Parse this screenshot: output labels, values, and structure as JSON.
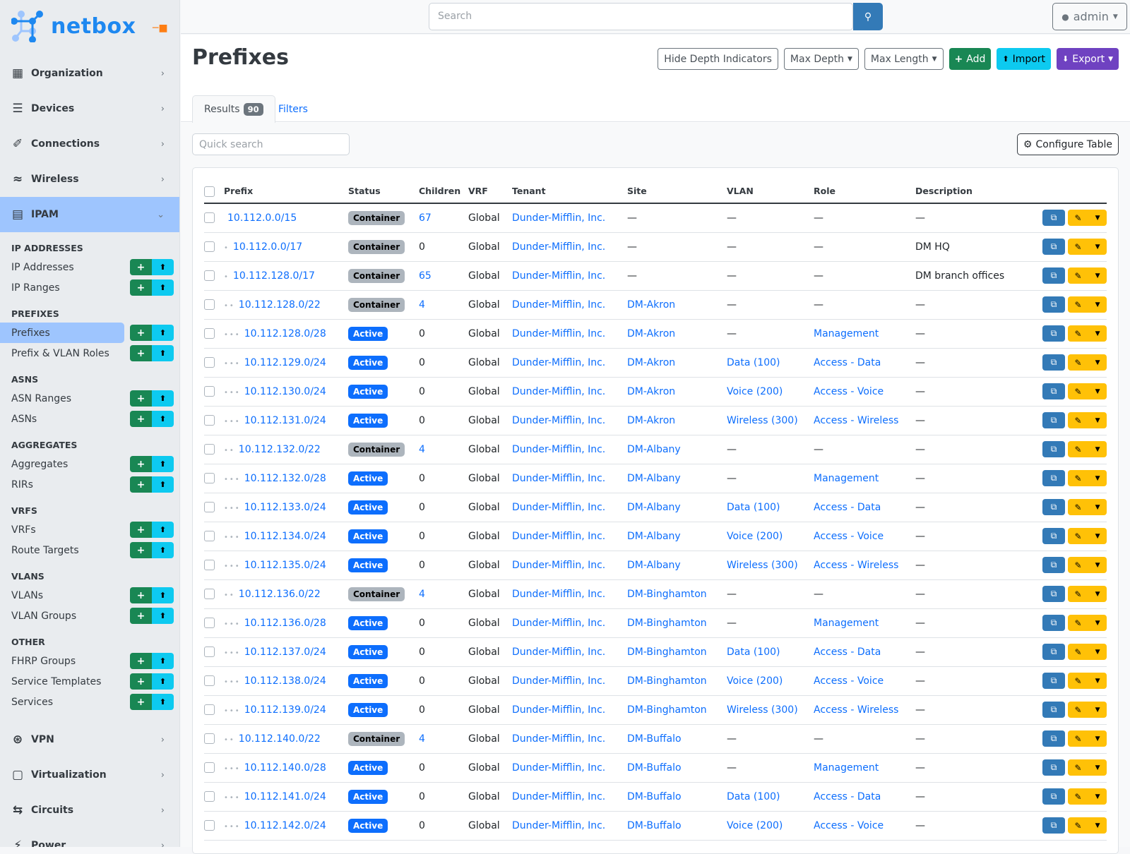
{
  "brand": {
    "name": "netbox",
    "accent": "#1e88f0"
  },
  "sidebar": {
    "top_items": [
      {
        "label": "Organization",
        "icon": "building-icon"
      },
      {
        "label": "Devices",
        "icon": "server-icon"
      },
      {
        "label": "Connections",
        "icon": "plug-icon"
      },
      {
        "label": "Wireless",
        "icon": "wifi-icon"
      }
    ],
    "active_section": {
      "label": "IPAM",
      "icon": "ipam-icon"
    },
    "groups": [
      {
        "heading": "IP ADDRESSES",
        "items": [
          {
            "label": "IP Addresses"
          },
          {
            "label": "IP Ranges"
          }
        ]
      },
      {
        "heading": "PREFIXES",
        "items": [
          {
            "label": "Prefixes",
            "active": true
          },
          {
            "label": "Prefix & VLAN Roles"
          }
        ]
      },
      {
        "heading": "ASNS",
        "items": [
          {
            "label": "ASN Ranges"
          },
          {
            "label": "ASNs"
          }
        ]
      },
      {
        "heading": "AGGREGATES",
        "items": [
          {
            "label": "Aggregates"
          },
          {
            "label": "RIRs"
          }
        ]
      },
      {
        "heading": "VRFS",
        "items": [
          {
            "label": "VRFs"
          },
          {
            "label": "Route Targets"
          }
        ]
      },
      {
        "heading": "VLANS",
        "items": [
          {
            "label": "VLANs"
          },
          {
            "label": "VLAN Groups"
          }
        ]
      },
      {
        "heading": "OTHER",
        "items": [
          {
            "label": "FHRP Groups"
          },
          {
            "label": "Service Templates"
          },
          {
            "label": "Services"
          }
        ]
      }
    ],
    "bottom_items": [
      {
        "label": "VPN",
        "icon": "vpn-icon"
      },
      {
        "label": "Virtualization",
        "icon": "monitor-icon"
      },
      {
        "label": "Circuits",
        "icon": "circuits-icon"
      },
      {
        "label": "Power",
        "icon": "bolt-icon"
      }
    ]
  },
  "topbar": {
    "search_placeholder": "Search",
    "user": "admin"
  },
  "page": {
    "title": "Prefixes",
    "buttons": {
      "hide_depth": "Hide Depth Indicators",
      "max_depth": "Max Depth",
      "max_length": "Max Length",
      "add": "Add",
      "import": "Import",
      "export": "Export"
    },
    "tabs": {
      "results": "Results",
      "results_count": "90",
      "filters": "Filters"
    },
    "quick_search_placeholder": "Quick search",
    "configure_table": "Configure Table"
  },
  "table": {
    "columns": [
      "Prefix",
      "Status",
      "Children",
      "VRF",
      "Tenant",
      "Site",
      "VLAN",
      "Role",
      "Description"
    ],
    "rows": [
      {
        "prefix": "10.112.0.0/15",
        "depth": 0,
        "status": "Container",
        "children": "67",
        "vrf": "Global",
        "tenant": "Dunder-Mifflin, Inc.",
        "site": "—",
        "vlan": "—",
        "role": "—",
        "description": "—"
      },
      {
        "prefix": "10.112.0.0/17",
        "depth": 1,
        "status": "Container",
        "children": "0",
        "vrf": "Global",
        "tenant": "Dunder-Mifflin, Inc.",
        "site": "—",
        "vlan": "—",
        "role": "—",
        "description": "DM HQ"
      },
      {
        "prefix": "10.112.128.0/17",
        "depth": 1,
        "status": "Container",
        "children": "65",
        "vrf": "Global",
        "tenant": "Dunder-Mifflin, Inc.",
        "site": "—",
        "vlan": "—",
        "role": "—",
        "description": "DM branch offices"
      },
      {
        "prefix": "10.112.128.0/22",
        "depth": 2,
        "status": "Container",
        "children": "4",
        "vrf": "Global",
        "tenant": "Dunder-Mifflin, Inc.",
        "site": "DM-Akron",
        "vlan": "—",
        "role": "—",
        "description": "—"
      },
      {
        "prefix": "10.112.128.0/28",
        "depth": 3,
        "status": "Active",
        "children": "0",
        "vrf": "Global",
        "tenant": "Dunder-Mifflin, Inc.",
        "site": "DM-Akron",
        "vlan": "—",
        "role": "Management",
        "description": "—"
      },
      {
        "prefix": "10.112.129.0/24",
        "depth": 3,
        "status": "Active",
        "children": "0",
        "vrf": "Global",
        "tenant": "Dunder-Mifflin, Inc.",
        "site": "DM-Akron",
        "vlan": "Data (100)",
        "role": "Access - Data",
        "description": "—"
      },
      {
        "prefix": "10.112.130.0/24",
        "depth": 3,
        "status": "Active",
        "children": "0",
        "vrf": "Global",
        "tenant": "Dunder-Mifflin, Inc.",
        "site": "DM-Akron",
        "vlan": "Voice (200)",
        "role": "Access - Voice",
        "description": "—"
      },
      {
        "prefix": "10.112.131.0/24",
        "depth": 3,
        "status": "Active",
        "children": "0",
        "vrf": "Global",
        "tenant": "Dunder-Mifflin, Inc.",
        "site": "DM-Akron",
        "vlan": "Wireless (300)",
        "role": "Access - Wireless",
        "description": "—"
      },
      {
        "prefix": "10.112.132.0/22",
        "depth": 2,
        "status": "Container",
        "children": "4",
        "vrf": "Global",
        "tenant": "Dunder-Mifflin, Inc.",
        "site": "DM-Albany",
        "vlan": "—",
        "role": "—",
        "description": "—"
      },
      {
        "prefix": "10.112.132.0/28",
        "depth": 3,
        "status": "Active",
        "children": "0",
        "vrf": "Global",
        "tenant": "Dunder-Mifflin, Inc.",
        "site": "DM-Albany",
        "vlan": "—",
        "role": "Management",
        "description": "—"
      },
      {
        "prefix": "10.112.133.0/24",
        "depth": 3,
        "status": "Active",
        "children": "0",
        "vrf": "Global",
        "tenant": "Dunder-Mifflin, Inc.",
        "site": "DM-Albany",
        "vlan": "Data (100)",
        "role": "Access - Data",
        "description": "—"
      },
      {
        "prefix": "10.112.134.0/24",
        "depth": 3,
        "status": "Active",
        "children": "0",
        "vrf": "Global",
        "tenant": "Dunder-Mifflin, Inc.",
        "site": "DM-Albany",
        "vlan": "Voice (200)",
        "role": "Access - Voice",
        "description": "—"
      },
      {
        "prefix": "10.112.135.0/24",
        "depth": 3,
        "status": "Active",
        "children": "0",
        "vrf": "Global",
        "tenant": "Dunder-Mifflin, Inc.",
        "site": "DM-Albany",
        "vlan": "Wireless (300)",
        "role": "Access - Wireless",
        "description": "—"
      },
      {
        "prefix": "10.112.136.0/22",
        "depth": 2,
        "status": "Container",
        "children": "4",
        "vrf": "Global",
        "tenant": "Dunder-Mifflin, Inc.",
        "site": "DM-Binghamton",
        "vlan": "—",
        "role": "—",
        "description": "—"
      },
      {
        "prefix": "10.112.136.0/28",
        "depth": 3,
        "status": "Active",
        "children": "0",
        "vrf": "Global",
        "tenant": "Dunder-Mifflin, Inc.",
        "site": "DM-Binghamton",
        "vlan": "—",
        "role": "Management",
        "description": "—"
      },
      {
        "prefix": "10.112.137.0/24",
        "depth": 3,
        "status": "Active",
        "children": "0",
        "vrf": "Global",
        "tenant": "Dunder-Mifflin, Inc.",
        "site": "DM-Binghamton",
        "vlan": "Data (100)",
        "role": "Access - Data",
        "description": "—"
      },
      {
        "prefix": "10.112.138.0/24",
        "depth": 3,
        "status": "Active",
        "children": "0",
        "vrf": "Global",
        "tenant": "Dunder-Mifflin, Inc.",
        "site": "DM-Binghamton",
        "vlan": "Voice (200)",
        "role": "Access - Voice",
        "description": "—"
      },
      {
        "prefix": "10.112.139.0/24",
        "depth": 3,
        "status": "Active",
        "children": "0",
        "vrf": "Global",
        "tenant": "Dunder-Mifflin, Inc.",
        "site": "DM-Binghamton",
        "vlan": "Wireless (300)",
        "role": "Access - Wireless",
        "description": "—"
      },
      {
        "prefix": "10.112.140.0/22",
        "depth": 2,
        "status": "Container",
        "children": "4",
        "vrf": "Global",
        "tenant": "Dunder-Mifflin, Inc.",
        "site": "DM-Buffalo",
        "vlan": "—",
        "role": "—",
        "description": "—"
      },
      {
        "prefix": "10.112.140.0/28",
        "depth": 3,
        "status": "Active",
        "children": "0",
        "vrf": "Global",
        "tenant": "Dunder-Mifflin, Inc.",
        "site": "DM-Buffalo",
        "vlan": "—",
        "role": "Management",
        "description": "—"
      },
      {
        "prefix": "10.112.141.0/24",
        "depth": 3,
        "status": "Active",
        "children": "0",
        "vrf": "Global",
        "tenant": "Dunder-Mifflin, Inc.",
        "site": "DM-Buffalo",
        "vlan": "Data (100)",
        "role": "Access - Data",
        "description": "—"
      },
      {
        "prefix": "10.112.142.0/24",
        "depth": 3,
        "status": "Active",
        "children": "0",
        "vrf": "Global",
        "tenant": "Dunder-Mifflin, Inc.",
        "site": "DM-Buffalo",
        "vlan": "Voice (200)",
        "role": "Access - Voice",
        "description": "—"
      }
    ]
  },
  "colors": {
    "container": "#adb5bd",
    "active": "#0d6efd",
    "add": "#198754",
    "import": "#0dcaf0",
    "export": "#6f42c1",
    "edit": "#ffc107",
    "copy": "#337ab7"
  }
}
